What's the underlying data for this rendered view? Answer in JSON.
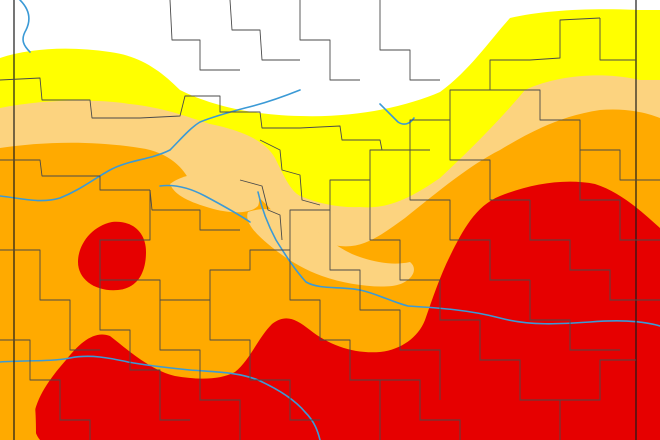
{
  "map": {
    "type": "drought-category-map",
    "categories": [
      {
        "key": "none",
        "color": "#ffffff"
      },
      {
        "key": "d0",
        "color": "#ffff00"
      },
      {
        "key": "d1",
        "color": "#fcd37f"
      },
      {
        "key": "d2",
        "color": "#ffaa00"
      },
      {
        "key": "d3",
        "color": "#e60000"
      }
    ],
    "river_color": "#3b9ad6",
    "boundary_color": "#4a4a4a"
  }
}
